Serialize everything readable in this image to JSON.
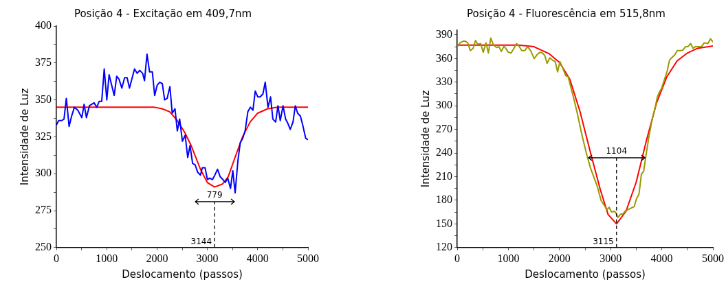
{
  "chart_data": [
    {
      "type": "line",
      "title": "Posição 4 - Excitação em 409,7nm",
      "xlabel": "Deslocamento (passos)",
      "ylabel": "Intensidade de Luz",
      "xlim": [
        0,
        5000
      ],
      "xticks": [
        0,
        {
          "value": 500,
          "label": null
        },
        1000,
        {
          "value": 1500,
          "label": null
        },
        2000,
        {
          "value": 2500,
          "label": null
        },
        3000,
        {
          "value": 3500,
          "label": null
        },
        4000,
        {
          "value": 4500,
          "label": null
        },
        5000
      ],
      "ylim": [
        250,
        400
      ],
      "yticks": [
        250,
        {
          "value": 262.5,
          "label": null
        },
        275,
        {
          "value": 287.5,
          "label": null
        },
        300,
        {
          "value": 312.5,
          "label": null
        },
        325,
        {
          "value": 337.5,
          "label": null
        },
        350,
        {
          "value": 362.5,
          "label": null
        },
        375,
        {
          "value": 387.5,
          "label": null
        },
        400
      ],
      "series": [
        {
          "color": "#0000ff",
          "x": [
            0,
            46,
            106,
            152,
            198,
            253,
            303,
            358,
            427,
            506,
            551,
            597,
            657,
            749,
            804,
            850,
            901,
            951,
            1002,
            1048,
            1149,
            1199,
            1245,
            1301,
            1356,
            1406,
            1452,
            1553,
            1604,
            1654,
            1714,
            1751,
            1801,
            1851,
            1907,
            1953,
            2004,
            2054,
            2105,
            2151,
            2201,
            2256,
            2302,
            2357,
            2403,
            2450,
            2504,
            2559,
            2610,
            2656,
            2707,
            2757,
            2808,
            2863,
            2900,
            2955,
            3001,
            3047,
            3102,
            3148,
            3203,
            3254,
            3309,
            3355,
            3405,
            3460,
            3506,
            3552,
            3608,
            3654,
            3704,
            3750,
            3805,
            3856,
            3906,
            3952,
            4003,
            4049,
            4104,
            4150,
            4205,
            4256,
            4302,
            4357,
            4403,
            4449,
            4504,
            4555,
            4601,
            4647,
            4702,
            4748,
            4794,
            4849,
            4895,
            4954,
            5000
          ],
          "values": [
            333,
            336,
            336,
            337,
            351,
            332,
            339,
            345,
            343,
            338,
            347,
            338,
            346,
            348,
            345,
            349,
            349,
            371,
            350,
            367,
            353,
            366,
            364,
            358,
            365,
            365,
            358,
            371,
            368,
            370,
            368,
            363,
            381,
            369,
            369,
            353,
            360,
            362,
            361,
            350,
            351,
            359,
            341,
            344,
            329,
            337,
            322,
            326,
            311,
            319,
            307,
            306,
            301,
            299,
            304,
            304,
            296,
            297,
            296,
            299,
            303,
            298,
            296,
            294,
            297,
            290,
            302,
            287,
            309,
            321,
            324,
            329,
            342,
            345,
            343,
            356,
            352,
            352,
            354,
            362,
            345,
            352,
            337,
            335,
            346,
            336,
            346,
            337,
            334,
            330,
            335,
            346,
            341,
            339,
            333,
            324,
            323
          ]
        },
        {
          "color": "#ff0000",
          "x": [
            0,
            1950,
            2100,
            2250,
            2403,
            2550,
            2679,
            2863,
            3000,
            3144,
            3300,
            3415,
            3550,
            3700,
            3850,
            4000,
            4200,
            4400,
            5000
          ],
          "values": [
            345,
            345,
            344,
            342,
            336,
            328,
            319,
            303,
            294,
            291,
            293,
            298,
            311,
            325,
            335,
            341,
            344,
            345,
            345
          ]
        }
      ],
      "ref_lines": [
        {
          "axis": "x",
          "value": 3144,
          "label": "3144",
          "line_style": "dashed"
        }
      ],
      "annotations": [
        {
          "text": "779",
          "x": 3144,
          "y": 281
        }
      ],
      "grid": false,
      "legend": false
    },
    {
      "type": "line",
      "title": "Posição 4 - Fluorescência em 515,8nm",
      "xlabel": "Deslocamento (passos)",
      "ylabel": "Intensidade de Luz",
      "xlim": [
        0,
        5000
      ],
      "xticks": [
        0,
        {
          "value": 500,
          "label": null
        },
        1000,
        {
          "value": 1500,
          "label": null
        },
        2000,
        {
          "value": 2500,
          "label": null
        },
        3000,
        {
          "value": 3500,
          "label": null
        },
        4000,
        {
          "value": 4500,
          "label": null
        },
        5000
      ],
      "ylim": [
        120,
        396
      ],
      "yticks": [
        120,
        {
          "value": 135,
          "label": null
        },
        150,
        {
          "value": 165,
          "label": null
        },
        180,
        {
          "value": 195,
          "label": null
        },
        210,
        {
          "value": 225,
          "label": null
        },
        240,
        {
          "value": 255,
          "label": null
        },
        270,
        {
          "value": 285,
          "label": null
        },
        300,
        {
          "value": 315,
          "label": null
        },
        330,
        {
          "value": 345,
          "label": null
        },
        360,
        {
          "value": 375,
          "label": null
        },
        390
      ],
      "series": [
        {
          "color": "#999900",
          "x": [
            0,
            60,
            115,
            161,
            206,
            257,
            312,
            358,
            404,
            459,
            509,
            564,
            610,
            656,
            711,
            771,
            817,
            862,
            917,
            1000,
            1055,
            1101,
            1161,
            1216,
            1261,
            1321,
            1376,
            1436,
            1505,
            1564,
            1619,
            1665,
            1711,
            1757,
            1812,
            1862,
            1917,
            1963,
            2009,
            2069,
            2124,
            2170,
            2216,
            2284,
            2353,
            2422,
            2468,
            2537,
            2606,
            2674,
            2743,
            2812,
            2881,
            2927,
            2972,
            3018,
            3078,
            3110,
            3142,
            3188,
            3248,
            3294,
            3339,
            3399,
            3463,
            3500,
            3555,
            3601,
            3647,
            3693,
            3752,
            3812,
            3867,
            3913,
            3950,
            3995,
            4050,
            4105,
            4151,
            4211,
            4257,
            4303,
            4372,
            4417,
            4463,
            4509,
            4564,
            4610,
            4656,
            4716,
            4775,
            4830,
            4899,
            4954,
            5000
          ],
          "values": [
            375,
            380,
            382,
            382,
            380,
            370,
            373,
            383,
            378,
            379,
            368,
            380,
            367,
            386,
            377,
            374,
            375,
            369,
            376,
            368,
            367,
            372,
            379,
            375,
            370,
            370,
            375,
            370,
            360,
            365,
            368,
            367,
            364,
            354,
            361,
            358,
            356,
            343,
            356,
            347,
            338,
            337,
            325,
            308,
            289,
            268,
            255,
            237,
            221,
            209,
            197,
            180,
            173,
            168,
            171,
            165,
            166,
            163,
            158,
            162,
            163,
            167,
            168,
            170,
            172,
            181,
            188,
            213,
            217,
            238,
            262,
            283,
            297,
            311,
            317,
            322,
            333,
            344,
            358,
            362,
            365,
            370,
            370,
            371,
            375,
            375,
            379,
            373,
            375,
            375,
            375,
            380,
            379,
            385,
            381
          ]
        },
        {
          "color": "#ff0000",
          "x": [
            0,
            1200,
            1500,
            1800,
            2000,
            2200,
            2400,
            2600,
            2800,
            2950,
            3115,
            3300,
            3500,
            3700,
            3900,
            4100,
            4300,
            4500,
            4700,
            5000
          ],
          "values": [
            377,
            377,
            375,
            366,
            355,
            334,
            293,
            242,
            193,
            162,
            150,
            166,
            203,
            256,
            304,
            337,
            357,
            367,
            373,
            376
          ]
        }
      ],
      "ref_lines": [
        {
          "axis": "x",
          "value": 3115,
          "label": "3115",
          "line_style": "dashed"
        }
      ],
      "annotations": [
        {
          "text": "1104",
          "x": 3115,
          "y": 234
        }
      ],
      "grid": false,
      "legend": false
    }
  ]
}
